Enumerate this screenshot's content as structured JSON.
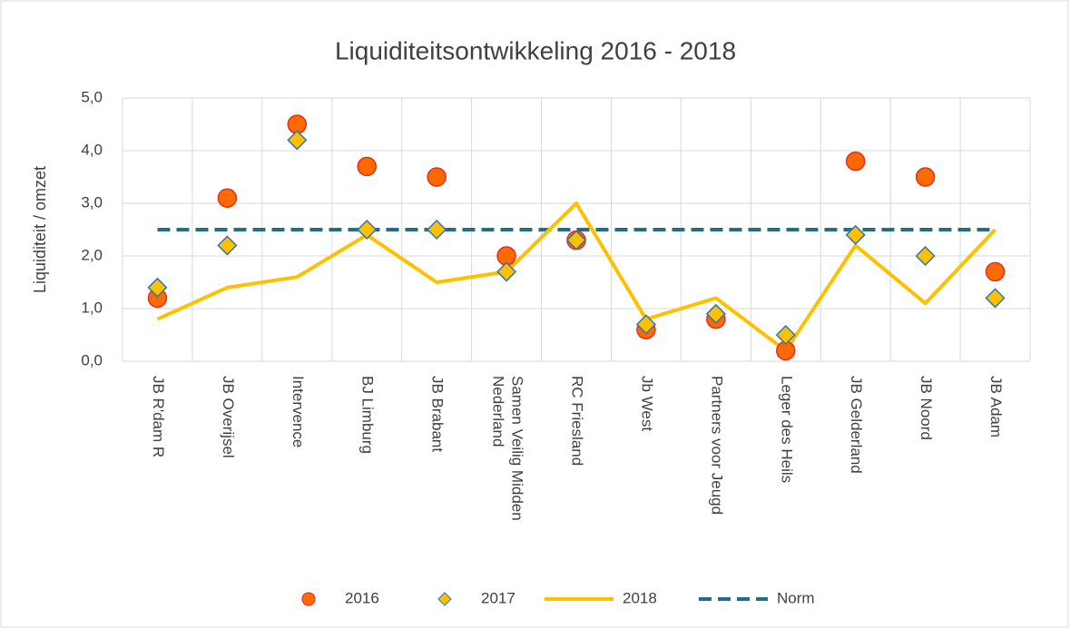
{
  "chart_data": {
    "type": "line",
    "title": "Liquiditeitsontwikkeling 2016 - 2018",
    "y_label": "Liquiditeit / omzet",
    "categories": [
      "JB R'dam R",
      "JB Overijsel",
      "Intervence",
      "BJ Limburg",
      "JB Brabant",
      "Samen Veilig Midden Nederland",
      "RC Friesland",
      "Jb West",
      "Partners voor Jeugd",
      "Leger des Heils",
      "JB Gelderland",
      "JB Noord",
      "JB Adam"
    ],
    "series": [
      {
        "name": "2016",
        "color": "#ff6a00",
        "marker": "circle",
        "values": [
          1.2,
          3.1,
          4.5,
          3.7,
          3.5,
          2.0,
          2.3,
          0.6,
          0.8,
          0.2,
          3.8,
          3.5,
          1.7
        ]
      },
      {
        "name": "2017",
        "color": "#ffc000",
        "marker": "diamond",
        "values": [
          1.4,
          2.2,
          4.2,
          2.5,
          2.5,
          1.7,
          2.3,
          0.7,
          0.9,
          0.5,
          2.4,
          2.0,
          1.2
        ]
      },
      {
        "name": "2018",
        "color": "#ffc000",
        "marker": "none",
        "values": [
          0.8,
          1.4,
          1.6,
          2.4,
          1.5,
          1.7,
          3.0,
          0.8,
          1.2,
          0.2,
          2.2,
          1.1,
          2.5
        ]
      },
      {
        "name": "Norm",
        "color": "#1f6e8c",
        "marker": "none",
        "dash": true,
        "values": [
          2.5,
          2.5,
          2.5,
          2.5,
          2.5,
          2.5,
          2.5,
          2.5,
          2.5,
          2.5,
          2.5,
          2.5,
          2.5
        ]
      }
    ],
    "ylim": [
      0,
      5
    ],
    "yticks": [
      {
        "value": 0,
        "label": "0,0"
      },
      {
        "value": 1,
        "label": "1,0"
      },
      {
        "value": 2,
        "label": "2,0"
      },
      {
        "value": 3,
        "label": "3,0"
      },
      {
        "value": 4,
        "label": "4,0"
      },
      {
        "value": 5,
        "label": "5,0"
      }
    ],
    "grid": true,
    "legend": "bottom"
  }
}
